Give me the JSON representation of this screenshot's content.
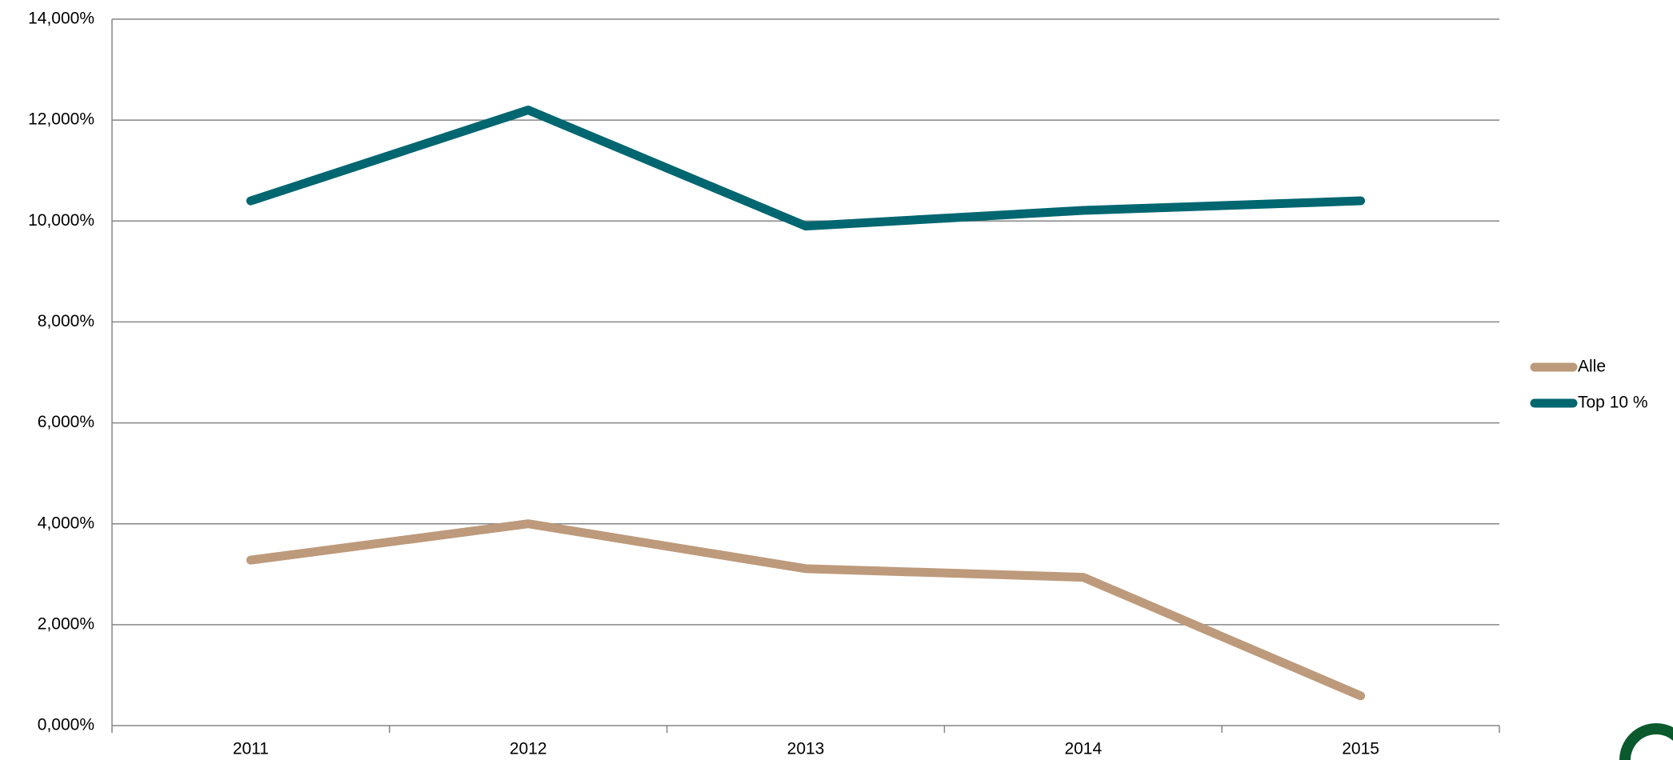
{
  "chart_data": {
    "type": "line",
    "categories": [
      "2011",
      "2012",
      "2013",
      "2014",
      "2015"
    ],
    "series": [
      {
        "name": "Alle",
        "color": "#bd9a7b",
        "values": [
          3.28,
          4.0,
          3.11,
          2.94,
          0.59
        ]
      },
      {
        "name": "Top 10 %",
        "color": "#006670",
        "values": [
          10.4,
          12.2,
          9.9,
          10.21,
          10.4
        ]
      }
    ],
    "ylim": [
      0,
      14
    ],
    "yticks": [
      {
        "value": 0,
        "label": "0,000%"
      },
      {
        "value": 2,
        "label": "2,000%"
      },
      {
        "value": 4,
        "label": "4,000%"
      },
      {
        "value": 6,
        "label": "6,000%"
      },
      {
        "value": 8,
        "label": "8,000%"
      },
      {
        "value": 10,
        "label": "10,000%"
      },
      {
        "value": 12,
        "label": "12,000%"
      },
      {
        "value": 14,
        "label": "14,000%"
      }
    ],
    "grid": true,
    "legend": "right"
  }
}
